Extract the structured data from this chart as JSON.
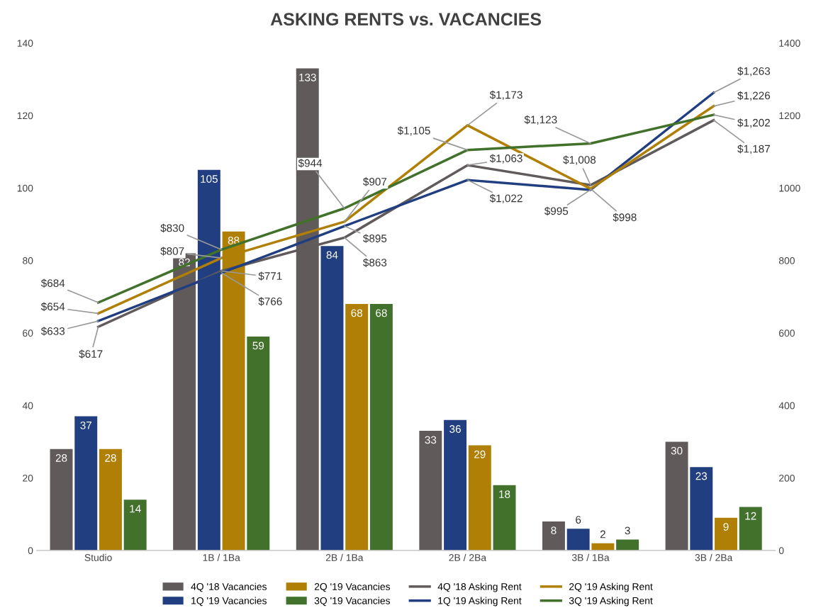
{
  "chart_data": {
    "type": "bar",
    "title": "ASKING RENTS vs. VACANCIES",
    "categories": [
      "Studio",
      "1B / 1Ba",
      "2B / 1Ba",
      "2B / 2Ba",
      "3B / 1Ba",
      "3B / 2Ba"
    ],
    "ylim": [
      0,
      140
    ],
    "yticks": [
      0,
      20,
      40,
      60,
      80,
      100,
      120,
      140
    ],
    "y2lim": [
      0,
      1400
    ],
    "y2ticks": [
      0,
      200,
      400,
      600,
      800,
      1000,
      1200,
      1400
    ],
    "data_labels": true,
    "grid": false,
    "legend": "bottom",
    "marker": "none",
    "line_style": "solid",
    "series": [
      {
        "name": "4Q '18 Vacancies",
        "color": "#605a5a",
        "values": [
          28,
          82,
          133,
          33,
          8,
          30
        ]
      },
      {
        "name": "1Q '19 Vacancies",
        "color": "#213f80",
        "values": [
          37,
          105,
          84,
          36,
          6,
          23
        ]
      },
      {
        "name": "2Q '19 Vacancies",
        "color": "#b07f05",
        "values": [
          28,
          88,
          68,
          29,
          2,
          9
        ]
      },
      {
        "name": "3Q '19 Vacancies",
        "color": "#41712b",
        "values": [
          14,
          59,
          68,
          18,
          3,
          12
        ]
      },
      {
        "name": "4Q '18 Asking Rent",
        "type": "line",
        "axis": "y2",
        "color": "#605a5a",
        "values": [
          617,
          771,
          863,
          1063,
          1008,
          1187
        ],
        "value_labels": [
          "$617",
          "$771",
          "$863",
          "$1,063",
          "$1,008",
          "$1,187"
        ]
      },
      {
        "name": "1Q '19 Asking Rent",
        "type": "line",
        "axis": "y2",
        "color": "#213f80",
        "values": [
          633,
          766,
          895,
          1022,
          995,
          1263
        ],
        "value_labels": [
          "$633",
          "$766",
          "$895",
          "$1,022",
          "$995",
          "$1,263"
        ]
      },
      {
        "name": "2Q '19 Asking Rent",
        "type": "line",
        "axis": "y2",
        "color": "#b07f05",
        "values": [
          654,
          807,
          907,
          1173,
          998,
          1226
        ],
        "value_labels": [
          "$654",
          "$807",
          "$907",
          "$1,173",
          "$998",
          "$1,226"
        ]
      },
      {
        "name": "3Q '19 Asking Rent",
        "type": "line",
        "axis": "y2",
        "color": "#41712b",
        "values": [
          684,
          830,
          944,
          1105,
          1123,
          1202
        ],
        "value_labels": [
          "$684",
          "$830",
          "$944",
          "$1,105",
          "$1,123",
          "$1,202"
        ]
      }
    ]
  }
}
